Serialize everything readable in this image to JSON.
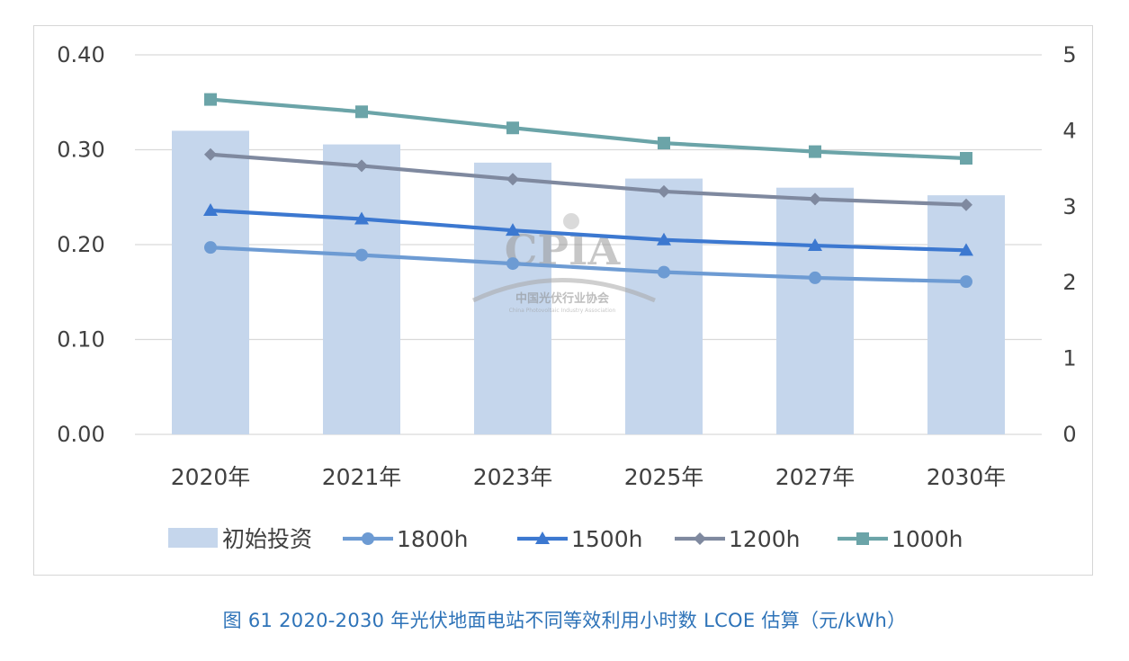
{
  "caption": "图 61   2020-2030 年光伏地面电站不同等效利用小时数 LCOE 估算（元/kWh）",
  "watermark": {
    "name": "CPIA",
    "cn": "中国光伏行业协会",
    "en": "China Photovoltaic Industry Association"
  },
  "chart_data": {
    "type": "bar+line",
    "categories": [
      "2020年",
      "2021年",
      "2023年",
      "2025年",
      "2027年",
      "2030年"
    ],
    "left_axis": {
      "ylim": [
        0,
        0.4
      ],
      "ticks": [
        "0.00",
        "0.10",
        "0.20",
        "0.30",
        "0.40"
      ]
    },
    "right_axis": {
      "ylim": [
        0,
        5
      ],
      "ticks": [
        "0",
        "1",
        "2",
        "3",
        "4",
        "5"
      ]
    },
    "grid": true,
    "legend_position": "bottom",
    "bar_series": {
      "name": "初始投资",
      "axis": "right",
      "color": "#c5d6ec",
      "values": [
        4.0,
        3.82,
        3.58,
        3.37,
        3.25,
        3.15
      ]
    },
    "series": [
      {
        "name": "1800h",
        "marker": "circle",
        "color": "#6d9bd3",
        "values": [
          0.197,
          0.189,
          0.18,
          0.171,
          0.165,
          0.161
        ]
      },
      {
        "name": "1500h",
        "marker": "triangle",
        "color": "#3c78d0",
        "values": [
          0.236,
          0.227,
          0.215,
          0.205,
          0.199,
          0.194
        ]
      },
      {
        "name": "1200h",
        "marker": "diamond",
        "color": "#7f899f",
        "values": [
          0.295,
          0.283,
          0.269,
          0.256,
          0.248,
          0.242
        ]
      },
      {
        "name": "1000h",
        "marker": "square",
        "color": "#6ba4a8",
        "values": [
          0.353,
          0.34,
          0.323,
          0.307,
          0.298,
          0.291
        ]
      }
    ]
  }
}
